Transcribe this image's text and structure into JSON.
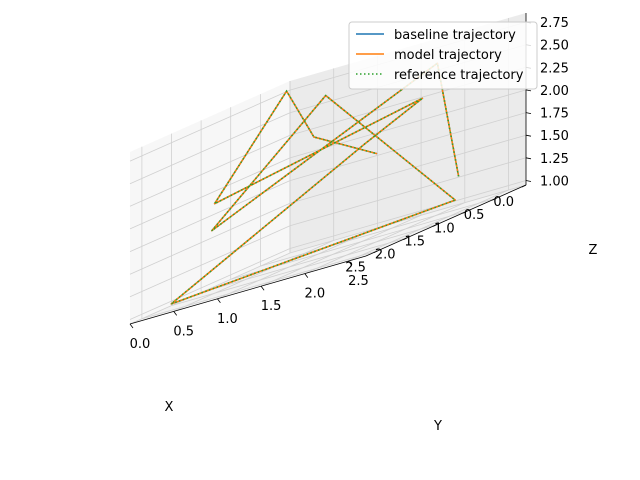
{
  "chart_data": {
    "type": "line",
    "projection": "3d",
    "title": "",
    "xlabel": "X",
    "ylabel": "Y",
    "zlabel": "Z",
    "xlim": [
      0.0,
      2.7
    ],
    "ylim": [
      0.0,
      2.7
    ],
    "zlim": [
      0.95,
      2.85
    ],
    "x_ticks": [
      "0.0",
      "0.5",
      "1.0",
      "1.5",
      "2.0",
      "2.5"
    ],
    "y_ticks": [
      "0.0",
      "0.5",
      "1.0",
      "1.5",
      "2.0",
      "2.5"
    ],
    "z_ticks": [
      "1.00",
      "1.25",
      "1.50",
      "1.75",
      "2.00",
      "2.25",
      "2.50",
      "2.75"
    ],
    "grid": true,
    "legend_position": "top-right",
    "series": [
      {
        "name": "baseline trajectory",
        "color": "#1f77b4",
        "style": "solid"
      },
      {
        "name": "model trajectory",
        "color": "#ff7f0e",
        "style": "solid"
      },
      {
        "name": "reference trajectory",
        "color": "#2ca02c",
        "style": "dotted"
      }
    ],
    "trajectory": {
      "x": [
        0.4,
        1.2,
        2.5,
        2.2,
        0.9,
        2.3,
        0.8,
        1.6,
        2.6,
        0.5,
        2.4,
        0.3
      ],
      "y": [
        2.2,
        2.5,
        0.8,
        1.9,
        2.5,
        0.2,
        1.4,
        2.6,
        0.9,
        0.3,
        1.9,
        1.2
      ],
      "z": [
        1.3,
        2.7,
        1.7,
        2.8,
        1.1,
        1.0,
        2.0,
        2.4,
        2.0,
        2.8,
        2.4,
        1.8
      ]
    }
  }
}
